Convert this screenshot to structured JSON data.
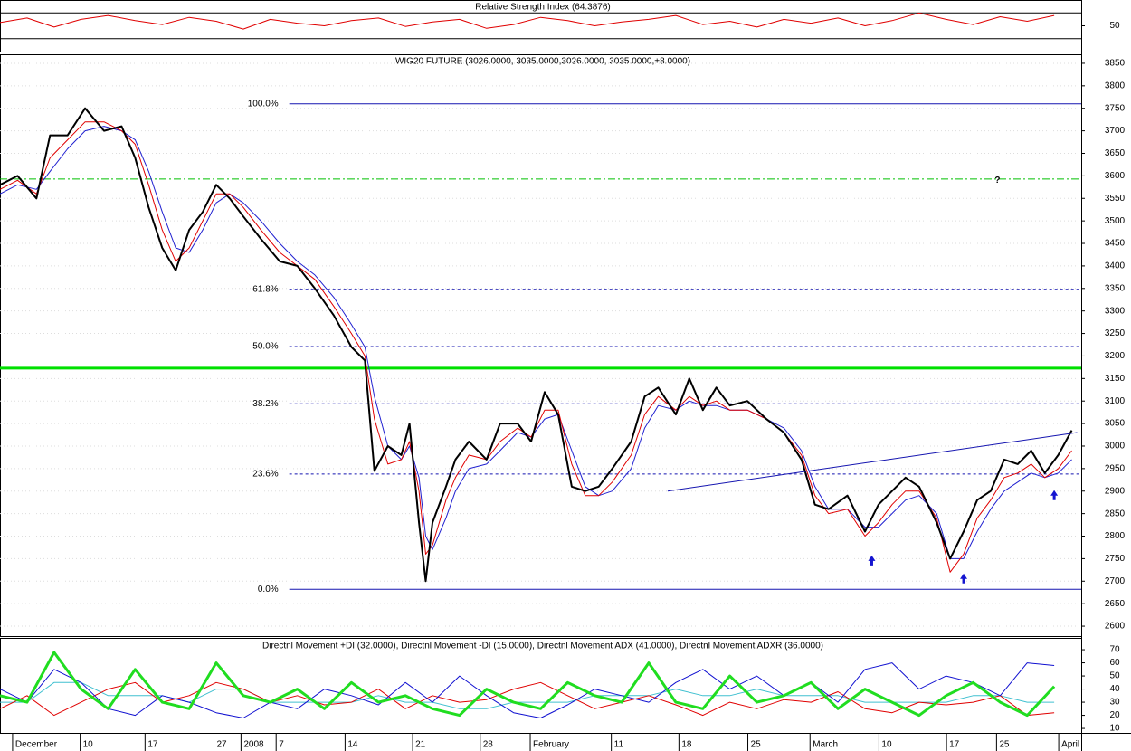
{
  "chart_data": [
    {
      "type": "line",
      "title": "Relative Strength Index (64.3876)",
      "xlim": [
        0,
        80
      ],
      "ylim": [
        10,
        90
      ],
      "yticks": [
        50
      ],
      "hlines": [
        {
          "value": 70,
          "color": "#000000",
          "style": "solid"
        },
        {
          "value": 30,
          "color": "#000000",
          "style": "solid"
        }
      ],
      "x": [
        0,
        2,
        4,
        6,
        8,
        10,
        12,
        14,
        16,
        18,
        20,
        22,
        24,
        26,
        28,
        30,
        32,
        34,
        36,
        38,
        40,
        42,
        44,
        46,
        48,
        50,
        52,
        54,
        56,
        58,
        60,
        62,
        64,
        66,
        68,
        70,
        72,
        74,
        76,
        78
      ],
      "series": [
        {
          "color": "#e00000",
          "width": 1,
          "values": [
            55,
            62,
            48,
            60,
            66,
            58,
            52,
            63,
            57,
            45,
            60,
            54,
            50,
            58,
            62,
            49,
            56,
            60,
            46,
            52,
            63,
            58,
            50,
            56,
            60,
            66,
            52,
            57,
            48,
            60,
            54,
            62,
            50,
            58,
            70,
            60,
            52,
            64,
            57,
            66
          ]
        }
      ]
    },
    {
      "type": "line",
      "title": "WIG20 FUTURE (3026.0000, 3035.0000,3026.0000, 3035.0000,+8.0000)",
      "xlim": [
        0,
        80
      ],
      "ylim": [
        2578,
        3870
      ],
      "grid": true,
      "yticks": [
        2600,
        2650,
        2700,
        2750,
        2800,
        2850,
        2900,
        2950,
        3000,
        3050,
        3100,
        3150,
        3200,
        3250,
        3300,
        3350,
        3400,
        3450,
        3500,
        3550,
        3600,
        3650,
        3700,
        3750,
        3800,
        3850
      ],
      "xticks": [
        {
          "value": 1.2,
          "label": "December"
        },
        {
          "value": 6.2,
          "label": "10"
        },
        {
          "value": 11,
          "label": "17"
        },
        {
          "value": 16.1,
          "label": "27"
        },
        {
          "value": 18.1,
          "label": "2008"
        },
        {
          "value": 20.7,
          "label": "7"
        },
        {
          "value": 25.8,
          "label": "14"
        },
        {
          "value": 30.8,
          "label": "21"
        },
        {
          "value": 35.8,
          "label": "28"
        },
        {
          "value": 39.5,
          "label": "February"
        },
        {
          "value": 45.5,
          "label": "11"
        },
        {
          "value": 50.5,
          "label": "18"
        },
        {
          "value": 55.6,
          "label": "25"
        },
        {
          "value": 60.2,
          "label": "March"
        },
        {
          "value": 65.3,
          "label": "10"
        },
        {
          "value": 70.3,
          "label": "17"
        },
        {
          "value": 74,
          "label": "25"
        },
        {
          "value": 78.6,
          "label": "April"
        }
      ],
      "levels": [
        {
          "value": 3760,
          "label": "100.0%",
          "style": "solid"
        },
        {
          "value": 3348,
          "label": "61.8%",
          "style": "dashed"
        },
        {
          "value": 3221,
          "label": "50.0%",
          "style": "dashed"
        },
        {
          "value": 3094,
          "label": "38.2%",
          "style": "dashed"
        },
        {
          "value": 2938,
          "label": "23.6%",
          "style": "dashed"
        },
        {
          "value": 2682,
          "label": "0.0%",
          "style": "solid"
        }
      ],
      "levels_x_start": 21.4,
      "levels_color": "#1515b0",
      "hlines": [
        {
          "value": 3173,
          "color": "#00e000",
          "style": "thick"
        },
        {
          "value": 3593,
          "color": "#00c000",
          "style": "dashdot"
        }
      ],
      "trendline": {
        "x": [
          49.4,
          79.7
        ],
        "y": [
          2900,
          3030
        ],
        "color": "#1515b0"
      },
      "arrows": [
        {
          "x": 64.5,
          "y": 2745
        },
        {
          "x": 71.3,
          "y": 2705
        },
        {
          "x": 78,
          "y": 2890
        }
      ],
      "annotations": [
        {
          "x": 73.6,
          "y": 3590,
          "text": "?"
        }
      ],
      "x": [
        0,
        1.3,
        2.7,
        3.7,
        5,
        6.3,
        7.7,
        9,
        10,
        11,
        12,
        13,
        14,
        15,
        16,
        17,
        18,
        19.3,
        20.7,
        22,
        23.3,
        24.7,
        26,
        27,
        27.7,
        28.7,
        29.7,
        30.3,
        31,
        31.5,
        32,
        33,
        33.7,
        34.7,
        36,
        37,
        38.3,
        39.3,
        40.3,
        41.3,
        42.3,
        43.3,
        44.3,
        45.3,
        46.7,
        47.7,
        48.7,
        50,
        51,
        52,
        53,
        54,
        55.3,
        56.7,
        58,
        59.3,
        60.3,
        61.3,
        62.7,
        64,
        65,
        66,
        67,
        68,
        69.3,
        70.3,
        71.3,
        72.3,
        73.3,
        74.3,
        75.3,
        76.3,
        77.3,
        78.3,
        79.3
      ],
      "series": [
        {
          "color": "#2020d0",
          "width": 1,
          "values": [
            3560,
            3580,
            3570,
            3610,
            3660,
            3700,
            3710,
            3700,
            3680,
            3610,
            3520,
            3440,
            3430,
            3480,
            3540,
            3560,
            3540,
            3500,
            3450,
            3410,
            3380,
            3330,
            3270,
            3220,
            3110,
            3000,
            2970,
            3000,
            2930,
            2800,
            2770,
            2840,
            2900,
            2950,
            2960,
            2990,
            3030,
            3020,
            3060,
            3070,
            2990,
            2910,
            2890,
            2900,
            2950,
            3040,
            3090,
            3080,
            3100,
            3090,
            3090,
            3080,
            3080,
            3060,
            3040,
            2990,
            2910,
            2860,
            2860,
            2820,
            2820,
            2850,
            2880,
            2890,
            2850,
            2750,
            2750,
            2810,
            2860,
            2900,
            2920,
            2940,
            2930,
            2940,
            2970
          ]
        },
        {
          "color": "#e00000",
          "width": 1,
          "values": [
            3570,
            3590,
            3560,
            3640,
            3680,
            3720,
            3720,
            3700,
            3670,
            3580,
            3480,
            3410,
            3440,
            3500,
            3560,
            3560,
            3530,
            3480,
            3430,
            3400,
            3370,
            3310,
            3250,
            3200,
            3060,
            2960,
            2970,
            3010,
            2900,
            2760,
            2780,
            2880,
            2930,
            2980,
            2970,
            3010,
            3040,
            3020,
            3080,
            3080,
            2960,
            2890,
            2890,
            2920,
            2980,
            3070,
            3110,
            3080,
            3110,
            3090,
            3100,
            3080,
            3080,
            3060,
            3030,
            2980,
            2890,
            2850,
            2860,
            2800,
            2830,
            2870,
            2900,
            2900,
            2840,
            2720,
            2760,
            2840,
            2880,
            2930,
            2940,
            2960,
            2930,
            2950,
            2990
          ]
        },
        {
          "color": "#000000",
          "width": 2,
          "values": [
            3580,
            3600,
            3550,
            3690,
            3690,
            3750,
            3700,
            3710,
            3640,
            3530,
            3440,
            3390,
            3480,
            3520,
            3580,
            3550,
            3510,
            3460,
            3410,
            3400,
            3350,
            3290,
            3220,
            3190,
            2945,
            3000,
            2980,
            3050,
            2830,
            2700,
            2830,
            2910,
            2970,
            3010,
            2970,
            3050,
            3050,
            3010,
            3120,
            3070,
            2910,
            2900,
            2910,
            2950,
            3010,
            3110,
            3130,
            3070,
            3150,
            3080,
            3130,
            3090,
            3100,
            3060,
            3030,
            2970,
            2870,
            2860,
            2890,
            2810,
            2870,
            2900,
            2930,
            2910,
            2830,
            2750,
            2810,
            2880,
            2900,
            2970,
            2960,
            2990,
            2940,
            2980,
            3035
          ]
        }
      ]
    },
    {
      "type": "line",
      "title": "Directnl Movement +DI (32.0000), Directnl Movement -DI (15.0000), Directnl Movement ADX (41.0000), Directnl Movement ADXR (36.0000)",
      "xlim": [
        0,
        80
      ],
      "ylim": [
        6.6,
        79
      ],
      "yticks": [
        10,
        20,
        30,
        40,
        50,
        60,
        70
      ],
      "x": [
        0,
        2,
        4,
        6,
        8,
        10,
        12,
        14,
        16,
        18,
        20,
        22,
        24,
        26,
        28,
        30,
        32,
        34,
        36,
        38,
        40,
        42,
        44,
        46,
        48,
        50,
        52,
        54,
        56,
        58,
        60,
        62,
        64,
        66,
        68,
        70,
        72,
        74,
        76,
        78
      ],
      "series": [
        {
          "color": "#40c0d0",
          "width": 1,
          "values": [
            30,
            30,
            45,
            45,
            35,
            35,
            35,
            30,
            40,
            40,
            30,
            30,
            30,
            30,
            35,
            30,
            30,
            25,
            25,
            30,
            30,
            30,
            35,
            35,
            35,
            40,
            35,
            35,
            40,
            35,
            35,
            35,
            30,
            30,
            30,
            30,
            35,
            35,
            30,
            30
          ]
        },
        {
          "color": "#e00000",
          "width": 1,
          "values": [
            25,
            35,
            20,
            30,
            40,
            45,
            30,
            35,
            45,
            40,
            30,
            35,
            28,
            30,
            40,
            25,
            35,
            30,
            32,
            40,
            45,
            35,
            25,
            30,
            35,
            28,
            20,
            30,
            25,
            32,
            30,
            38,
            25,
            22,
            30,
            28,
            30,
            35,
            20,
            22
          ]
        },
        {
          "color": "#1010d0",
          "width": 1,
          "values": [
            40,
            30,
            55,
            45,
            25,
            20,
            35,
            30,
            22,
            18,
            30,
            25,
            40,
            35,
            28,
            45,
            30,
            50,
            35,
            22,
            18,
            28,
            40,
            35,
            30,
            45,
            55,
            40,
            50,
            35,
            45,
            30,
            55,
            60,
            40,
            50,
            45,
            35,
            60,
            58
          ]
        },
        {
          "color": "#20dd20",
          "width": 3,
          "values": [
            35,
            30,
            68,
            40,
            25,
            55,
            30,
            25,
            60,
            35,
            30,
            40,
            25,
            45,
            30,
            35,
            25,
            20,
            40,
            30,
            25,
            45,
            35,
            30,
            60,
            30,
            25,
            50,
            30,
            35,
            45,
            25,
            40,
            30,
            20,
            35,
            45,
            30,
            20,
            42
          ]
        }
      ]
    }
  ]
}
